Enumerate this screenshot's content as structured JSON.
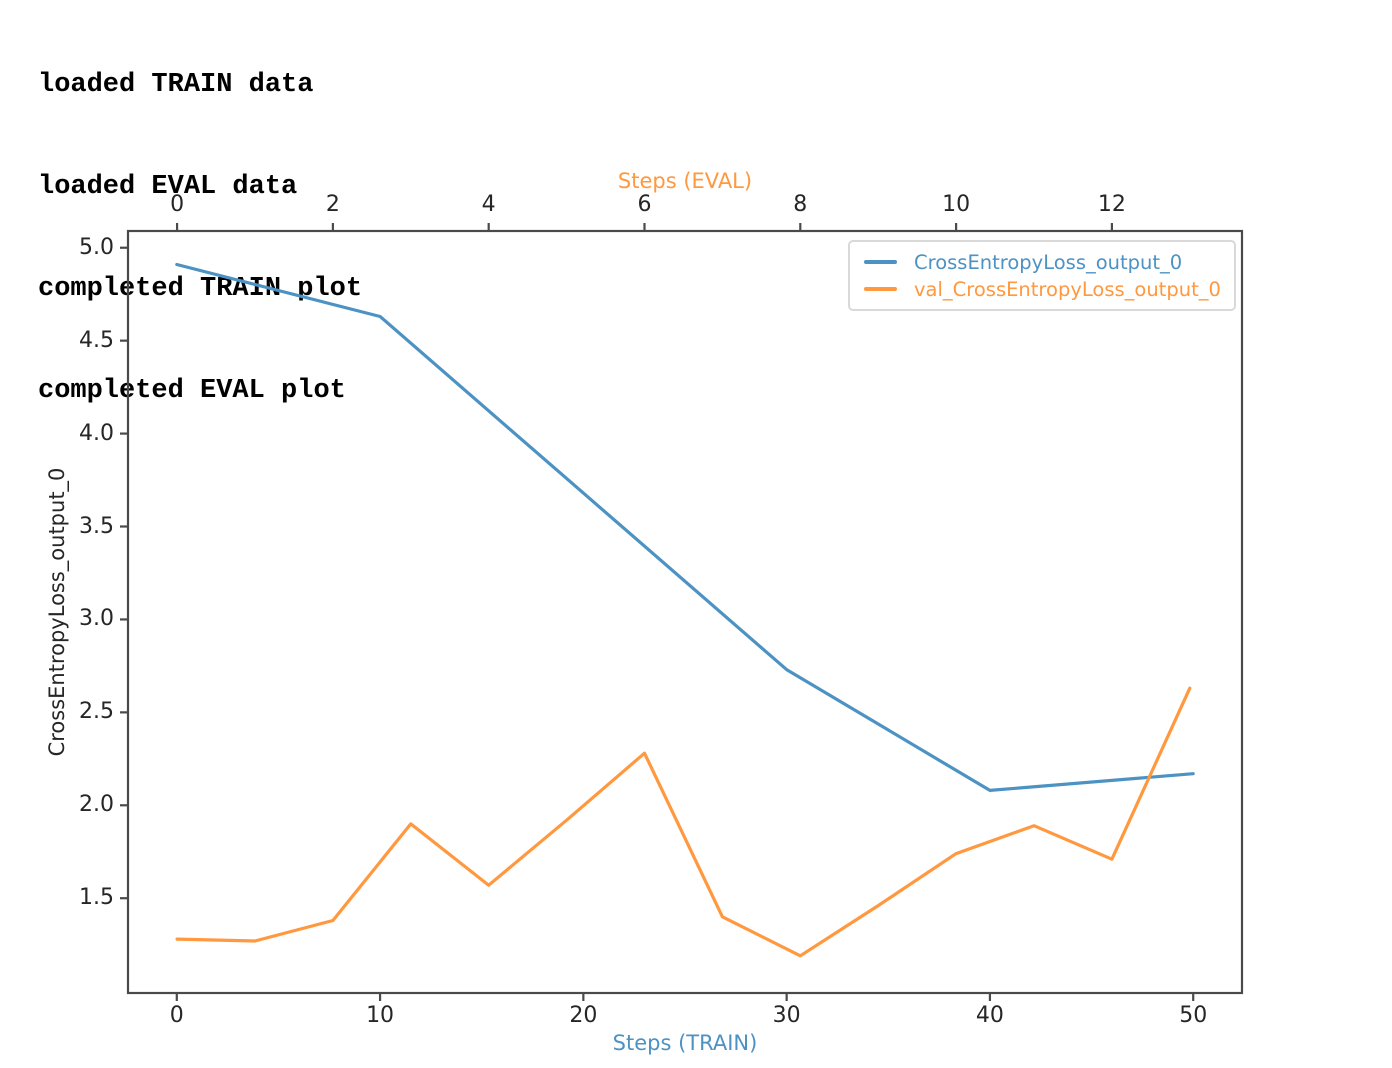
{
  "console": {
    "lines": [
      "loaded TRAIN data",
      "loaded EVAL data",
      "completed TRAIN plot",
      "completed EVAL plot"
    ]
  },
  "chart_data": {
    "type": "line",
    "title": "",
    "grid": false,
    "spine_color": "#4a4a4a",
    "tick_label_color": "#262626",
    "axes": {
      "top": {
        "label": "Steps (EVAL)",
        "color": "#ff983e",
        "tick_values": [
          0,
          2,
          4,
          6,
          8,
          10,
          12
        ],
        "tick_labels": [
          "0",
          "2",
          "4",
          "6",
          "8",
          "10",
          "12"
        ],
        "lim": [
          -0.63,
          13.67
        ]
      },
      "bottom": {
        "label": "Steps (TRAIN)",
        "color": "#4c92c3",
        "tick_values": [
          0,
          10,
          20,
          30,
          40,
          50
        ],
        "tick_labels": [
          "0",
          "10",
          "20",
          "30",
          "40",
          "50"
        ],
        "lim": [
          -2.4,
          52.4
        ]
      },
      "left": {
        "label": "CrossEntropyLoss_output_0",
        "color": "#262626",
        "tick_values": [
          5.0,
          4.5,
          4.0,
          3.5,
          3.0,
          2.5,
          2.0,
          1.5
        ],
        "tick_labels": [
          "5.0",
          "4.5",
          "4.0",
          "3.5",
          "3.0",
          "2.5",
          "2.0",
          "1.5"
        ],
        "lim": [
          0.99,
          5.09
        ]
      }
    },
    "series": [
      {
        "name": "CrossEntropyLoss_output_0",
        "x_axis": "bottom",
        "color": "#4c92c3",
        "x": [
          0,
          10,
          20,
          30,
          40,
          50
        ],
        "y": [
          4.91,
          4.63,
          3.68,
          2.73,
          2.08,
          2.17
        ]
      },
      {
        "name": "val_CrossEntropyLoss_output_0",
        "x_axis": "top",
        "color": "#ff983e",
        "x": [
          0,
          1,
          2,
          3,
          4,
          5,
          6,
          7,
          8,
          9,
          10,
          11,
          12,
          13
        ],
        "y": [
          1.28,
          1.27,
          1.38,
          1.9,
          1.57,
          1.92,
          2.28,
          1.4,
          1.19,
          1.46,
          1.74,
          1.89,
          1.71,
          2.63
        ]
      }
    ],
    "legend": {
      "position": "upper right",
      "entries": [
        "CrossEntropyLoss_output_0",
        "val_CrossEntropyLoss_output_0"
      ]
    }
  }
}
